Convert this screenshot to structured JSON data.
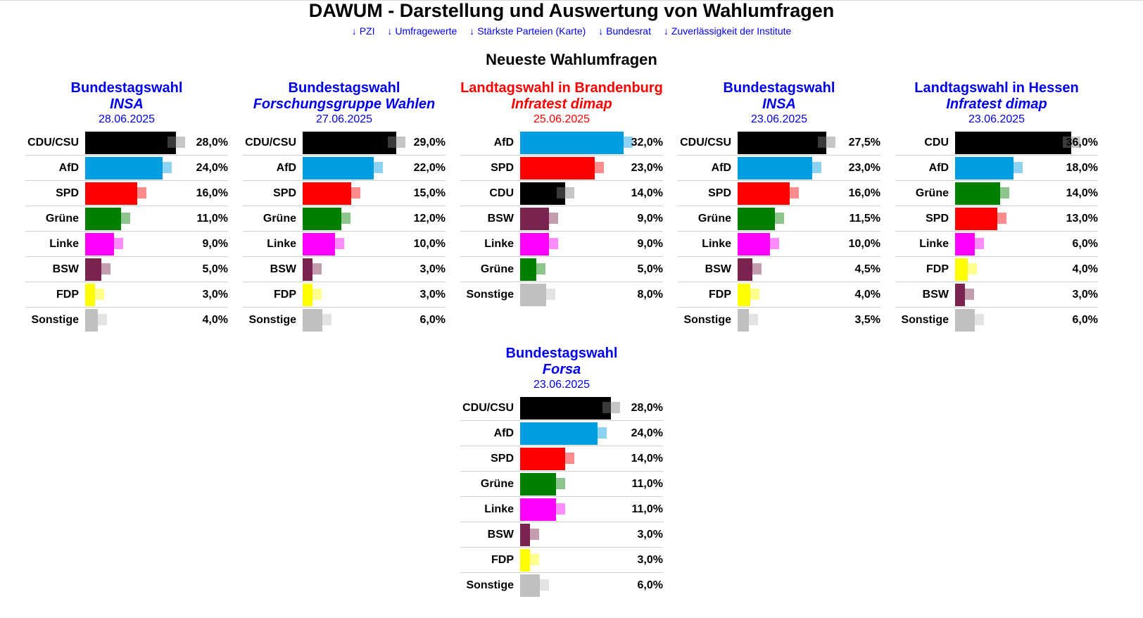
{
  "header": {
    "title": "DAWUM - Darstellung und Auswertung von Wahlumfragen",
    "nav": [
      {
        "arrow": "↓",
        "label": "PZI"
      },
      {
        "arrow": "↓",
        "label": "Umfragewerte"
      },
      {
        "arrow": "↓",
        "label": "Stärkste Parteien (Karte)"
      },
      {
        "arrow": "↓",
        "label": "Bundesrat"
      },
      {
        "arrow": "↓",
        "label": "Zuverlässigkeit der Institute"
      }
    ]
  },
  "section_title": "Neueste Wahlumfragen",
  "party_colors": {
    "CDU/CSU": "#000000",
    "CDU": "#000000",
    "AfD": "#009ee0",
    "SPD": "#ff0000",
    "Grüne": "#008000",
    "Linke": "#ff00ff",
    "BSW": "#7b2450",
    "FDP": "#ffff00",
    "Sonstige": "#c0c0c0"
  },
  "chart_data": [
    {
      "type": "bar",
      "title": "Bundestagswahl",
      "institute": "INSA",
      "date": "28.06.2025",
      "title_color": "#0000ee",
      "categories": [
        "CDU/CSU",
        "AfD",
        "SPD",
        "Grüne",
        "Linke",
        "BSW",
        "FDP",
        "Sonstige"
      ],
      "values": [
        28.0,
        24.0,
        16.0,
        11.0,
        9.0,
        5.0,
        3.0,
        4.0
      ],
      "labels": [
        "28,0%",
        "24,0%",
        "16,0%",
        "11,0%",
        "9,0%",
        "5,0%",
        "3,0%",
        "4,0%"
      ],
      "xlim": [
        0,
        37
      ]
    },
    {
      "type": "bar",
      "title": "Bundestagswahl",
      "institute": "Forschungsgruppe Wahlen",
      "date": "27.06.2025",
      "title_color": "#0000ee",
      "categories": [
        "CDU/CSU",
        "AfD",
        "SPD",
        "Grüne",
        "Linke",
        "BSW",
        "FDP",
        "Sonstige"
      ],
      "values": [
        29.0,
        22.0,
        15.0,
        12.0,
        10.0,
        3.0,
        3.0,
        6.0
      ],
      "labels": [
        "29,0%",
        "22,0%",
        "15,0%",
        "12,0%",
        "10,0%",
        "3,0%",
        "3,0%",
        "6,0%"
      ],
      "xlim": [
        0,
        37
      ]
    },
    {
      "type": "bar",
      "title": "Landtagswahl in Brandenburg",
      "institute": "Infratest dimap",
      "date": "25.06.2025",
      "title_color": "#ff0000",
      "categories": [
        "AfD",
        "SPD",
        "CDU",
        "BSW",
        "Linke",
        "Grüne",
        "Sonstige"
      ],
      "values": [
        32.0,
        23.0,
        14.0,
        9.0,
        9.0,
        5.0,
        8.0
      ],
      "labels": [
        "32,0%",
        "23,0%",
        "14,0%",
        "9,0%",
        "9,0%",
        "5,0%",
        "8,0%"
      ],
      "xlim": [
        0,
        37
      ]
    },
    {
      "type": "bar",
      "title": "Bundestagswahl",
      "institute": "INSA",
      "date": "23.06.2025",
      "title_color": "#0000ee",
      "categories": [
        "CDU/CSU",
        "AfD",
        "SPD",
        "Grüne",
        "Linke",
        "BSW",
        "FDP",
        "Sonstige"
      ],
      "values": [
        27.5,
        23.0,
        16.0,
        11.5,
        10.0,
        4.5,
        4.0,
        3.5
      ],
      "labels": [
        "27,5%",
        "23,0%",
        "16,0%",
        "11,5%",
        "10,0%",
        "4,5%",
        "4,0%",
        "3,5%"
      ],
      "xlim": [
        0,
        37
      ]
    },
    {
      "type": "bar",
      "title": "Landtagswahl in Hessen",
      "institute": "Infratest dimap",
      "date": "23.06.2025",
      "title_color": "#0000ee",
      "categories": [
        "CDU",
        "AfD",
        "Grüne",
        "SPD",
        "Linke",
        "FDP",
        "BSW",
        "Sonstige"
      ],
      "values": [
        36.0,
        18.0,
        14.0,
        13.0,
        6.0,
        4.0,
        3.0,
        6.0
      ],
      "labels": [
        "36,0%",
        "18,0%",
        "14,0%",
        "13,0%",
        "6,0%",
        "4,0%",
        "3,0%",
        "6,0%"
      ],
      "xlim": [
        0,
        37
      ]
    },
    {
      "type": "bar",
      "title": "Bundestagswahl",
      "institute": "Forsa",
      "date": "23.06.2025",
      "title_color": "#0000ee",
      "categories": [
        "CDU/CSU",
        "AfD",
        "SPD",
        "Grüne",
        "Linke",
        "BSW",
        "FDP",
        "Sonstige"
      ],
      "values": [
        28.0,
        24.0,
        14.0,
        11.0,
        11.0,
        3.0,
        3.0,
        6.0
      ],
      "labels": [
        "28,0%",
        "24,0%",
        "14,0%",
        "11,0%",
        "11,0%",
        "3,0%",
        "3,0%",
        "6,0%"
      ],
      "xlim": [
        0,
        37
      ]
    }
  ]
}
